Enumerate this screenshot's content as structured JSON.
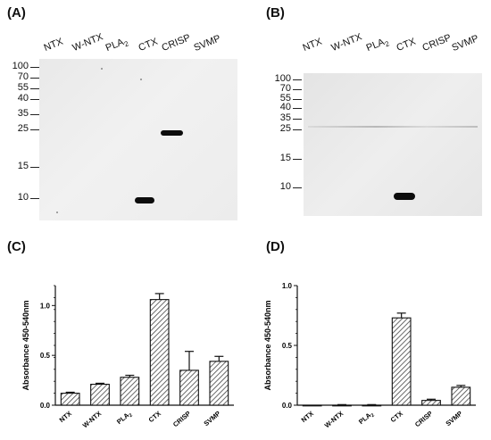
{
  "panels": {
    "a": {
      "label": "(A)"
    },
    "b": {
      "label": "(B)"
    },
    "c": {
      "label": "(C)"
    },
    "d": {
      "label": "(D)"
    }
  },
  "lanes": [
    "NTX",
    "W-NTX",
    "PLA2",
    "CTX",
    "CRISP",
    "SVMP"
  ],
  "blot_a": {
    "markers": [
      "100",
      "70",
      "55",
      "40",
      "35",
      "25",
      "15",
      "10"
    ],
    "bands": [
      {
        "lane": "CRISP",
        "marker": "25"
      },
      {
        "lane": "CTX",
        "marker": "10"
      }
    ]
  },
  "blot_b": {
    "markers": [
      "100",
      "70",
      "55",
      "40",
      "35",
      "25",
      "15",
      "10"
    ],
    "bands": [
      {
        "lane": "CTX",
        "marker": "below 10"
      }
    ]
  },
  "chart_data": [
    {
      "type": "bar",
      "categories": [
        "NTX",
        "W-NTX",
        "PLA2",
        "CTX",
        "CRISP",
        "SVMP"
      ],
      "values": [
        0.12,
        0.21,
        0.28,
        1.06,
        0.35,
        0.44
      ],
      "errors": [
        0.01,
        0.01,
        0.02,
        0.06,
        0.19,
        0.05
      ],
      "xlabel": "",
      "ylabel": "Absorbance 450-540nm",
      "ylim": [
        0,
        1.2
      ],
      "yticks": [
        "0.0",
        "0.5",
        "1.0"
      ]
    },
    {
      "type": "bar",
      "categories": [
        "NTX",
        "W-NTX",
        "PLA2",
        "CTX",
        "CRISP",
        "SVMP"
      ],
      "values": [
        0.0,
        0.0,
        0.0,
        0.73,
        0.04,
        0.15
      ],
      "errors": [
        0.0,
        0.005,
        0.005,
        0.04,
        0.01,
        0.015
      ],
      "xlabel": "",
      "ylabel": "Absorbance 450-540nm",
      "ylim": [
        0,
        1.0
      ],
      "yticks": [
        "0.0",
        "0.5",
        "1.0"
      ]
    }
  ]
}
